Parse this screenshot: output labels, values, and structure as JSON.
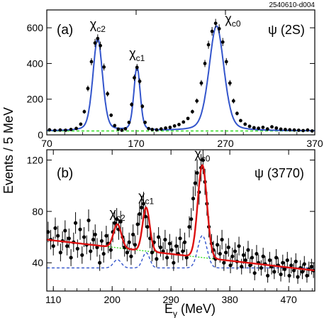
{
  "figure": {
    "code": "2540610-d004",
    "ylabel": "Events / 5 MeV",
    "xlabel_main": "E",
    "xlabel_sub": "γ",
    "xlabel_unit": " (MeV)"
  },
  "chart_data": [
    {
      "type": "scatter",
      "panel_label": "(a)",
      "state": "ψ (2S)",
      "peaks": [
        {
          "name": "χ",
          "sub": "c2",
          "x": 127,
          "height": 540
        },
        {
          "name": "χ",
          "sub": "c1",
          "x": 171,
          "height": 378
        },
        {
          "name": "χ",
          "sub": "c0",
          "x": 260,
          "height": 610
        }
      ],
      "xlim": [
        70,
        370
      ],
      "ylim": [
        0,
        700
      ],
      "x_ticks": [
        70,
        170,
        270,
        370
      ],
      "y_ticks": [
        0,
        200,
        400,
        600
      ],
      "background": 22,
      "points": [
        [
          73,
          28
        ],
        [
          79,
          25
        ],
        [
          85,
          27
        ],
        [
          91,
          26
        ],
        [
          97,
          30
        ],
        [
          103,
          36
        ],
        [
          108,
          60
        ],
        [
          112,
          130
        ],
        [
          116,
          260
        ],
        [
          120,
          410
        ],
        [
          124,
          515
        ],
        [
          127,
          540
        ],
        [
          130,
          500
        ],
        [
          134,
          380
        ],
        [
          138,
          230
        ],
        [
          142,
          110
        ],
        [
          146,
          52
        ],
        [
          150,
          32
        ],
        [
          154,
          26
        ],
        [
          158,
          34
        ],
        [
          162,
          70
        ],
        [
          165,
          170
        ],
        [
          168,
          320
        ],
        [
          171,
          378
        ],
        [
          174,
          300
        ],
        [
          177,
          160
        ],
        [
          180,
          70
        ],
        [
          184,
          35
        ],
        [
          188,
          30
        ],
        [
          193,
          28
        ],
        [
          198,
          33
        ],
        [
          203,
          38
        ],
        [
          208,
          42
        ],
        [
          213,
          50
        ],
        [
          218,
          58
        ],
        [
          223,
          72
        ],
        [
          228,
          92
        ],
        [
          233,
          130
        ],
        [
          238,
          190
        ],
        [
          243,
          290
        ],
        [
          247,
          400
        ],
        [
          251,
          505
        ],
        [
          255,
          580
        ],
        [
          259,
          625
        ],
        [
          263,
          595
        ],
        [
          267,
          520
        ],
        [
          271,
          410
        ],
        [
          275,
          290
        ],
        [
          279,
          190
        ],
        [
          283,
          120
        ],
        [
          287,
          80
        ],
        [
          292,
          60
        ],
        [
          297,
          48
        ],
        [
          302,
          40
        ],
        [
          307,
          37
        ],
        [
          312,
          42
        ],
        [
          317,
          33
        ],
        [
          322,
          45
        ],
        [
          327,
          38
        ],
        [
          332,
          32
        ],
        [
          337,
          30
        ],
        [
          342,
          28
        ],
        [
          347,
          27
        ],
        [
          352,
          26
        ],
        [
          357,
          24
        ],
        [
          362,
          27
        ],
        [
          367,
          22
        ]
      ],
      "fit_color": "#3355cc",
      "bg_color": "#33dd22"
    },
    {
      "type": "scatter",
      "panel_label": "(b)",
      "state": "ψ (3770)",
      "peaks": [
        {
          "name": "χ",
          "sub": "c2",
          "x": 208,
          "height": 70
        },
        {
          "name": "χ",
          "sub": "c1",
          "x": 252,
          "height": 83
        },
        {
          "name": "χ",
          "sub": "c0",
          "x": 338,
          "height": 116
        }
      ],
      "xlim": [
        100,
        510
      ],
      "ylim": [
        18,
        128
      ],
      "x_ticks": [
        110,
        200,
        290,
        380,
        470
      ],
      "y_ticks": [
        40,
        80,
        120
      ],
      "points": [
        [
          102,
          64
        ],
        [
          106,
          58
        ],
        [
          110,
          53
        ],
        [
          113,
          67
        ],
        [
          117,
          61
        ],
        [
          121,
          48
        ],
        [
          124,
          57
        ],
        [
          128,
          65
        ],
        [
          131,
          53
        ],
        [
          134,
          59
        ],
        [
          137,
          44
        ],
        [
          141,
          56
        ],
        [
          144,
          71
        ],
        [
          147,
          51
        ],
        [
          151,
          66
        ],
        [
          154,
          46
        ],
        [
          157,
          60
        ],
        [
          161,
          54
        ],
        [
          164,
          73
        ],
        [
          167,
          49
        ],
        [
          171,
          58
        ],
        [
          174,
          62
        ],
        [
          177,
          52
        ],
        [
          181,
          40
        ],
        [
          184,
          57
        ],
        [
          187,
          47
        ],
        [
          191,
          61
        ],
        [
          194,
          55
        ],
        [
          198,
          50
        ],
        [
          201,
          64
        ],
        [
          204,
          71
        ],
        [
          207,
          74
        ],
        [
          210,
          66
        ],
        [
          213,
          72
        ],
        [
          216,
          60
        ],
        [
          219,
          52
        ],
        [
          223,
          48
        ],
        [
          226,
          56
        ],
        [
          229,
          45
        ],
        [
          232,
          62
        ],
        [
          235,
          54
        ],
        [
          239,
          70
        ],
        [
          242,
          78
        ],
        [
          245,
          83
        ],
        [
          248,
          86
        ],
        [
          251,
          76
        ],
        [
          254,
          68
        ],
        [
          258,
          59
        ],
        [
          261,
          48
        ],
        [
          264,
          56
        ],
        [
          268,
          43
        ],
        [
          271,
          60
        ],
        [
          274,
          52
        ],
        [
          278,
          49
        ],
        [
          281,
          58
        ],
        [
          284,
          44
        ],
        [
          288,
          55
        ],
        [
          291,
          50
        ],
        [
          294,
          40
        ],
        [
          298,
          53
        ],
        [
          301,
          47
        ],
        [
          304,
          59
        ],
        [
          308,
          49
        ],
        [
          311,
          56
        ],
        [
          314,
          44
        ],
        [
          318,
          68
        ],
        [
          321,
          74
        ],
        [
          324,
          90
        ],
        [
          327,
          102
        ],
        [
          330,
          110
        ],
        [
          333,
          95
        ],
        [
          336,
          114
        ],
        [
          339,
          120
        ],
        [
          342,
          103
        ],
        [
          345,
          86
        ],
        [
          348,
          68
        ],
        [
          352,
          55
        ],
        [
          355,
          50
        ],
        [
          358,
          43
        ],
        [
          361,
          54
        ],
        [
          365,
          47
        ],
        [
          368,
          58
        ],
        [
          371,
          40
        ],
        [
          374,
          48
        ],
        [
          378,
          52
        ],
        [
          381,
          38
        ],
        [
          384,
          45
        ],
        [
          388,
          49
        ],
        [
          391,
          41
        ],
        [
          394,
          53
        ],
        [
          398,
          37
        ],
        [
          401,
          46
        ],
        [
          404,
          42
        ],
        [
          408,
          50
        ],
        [
          411,
          38
        ],
        [
          414,
          44
        ],
        [
          418,
          32
        ],
        [
          421,
          47
        ],
        [
          424,
          40
        ],
        [
          428,
          36
        ],
        [
          431,
          45
        ],
        [
          434,
          39
        ],
        [
          438,
          30
        ],
        [
          441,
          42
        ],
        [
          444,
          37
        ],
        [
          448,
          33
        ],
        [
          451,
          44
        ],
        [
          454,
          38
        ],
        [
          458,
          31
        ],
        [
          461,
          40
        ],
        [
          464,
          35
        ],
        [
          468,
          42
        ],
        [
          471,
          30
        ],
        [
          474,
          38
        ],
        [
          478,
          34
        ],
        [
          481,
          41
        ],
        [
          484,
          29
        ],
        [
          488,
          36
        ],
        [
          491,
          33
        ],
        [
          494,
          39
        ],
        [
          498,
          30
        ],
        [
          501,
          35
        ],
        [
          505,
          37
        ],
        [
          508,
          34
        ]
      ],
      "fit_color": "#dd1111",
      "signal_color": "#3355cc",
      "bg_color": "#33dd22"
    }
  ]
}
